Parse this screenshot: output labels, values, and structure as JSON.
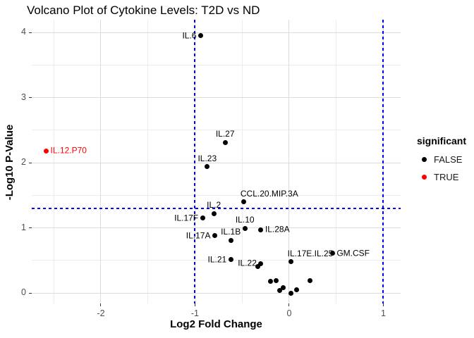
{
  "title": "Volcano Plot of Cytokine Levels: T2D vs ND",
  "legend": {
    "title": "significant",
    "items": [
      {
        "label": "FALSE",
        "color": "#000000"
      },
      {
        "label": "TRUE",
        "color": "#FF0000"
      }
    ]
  },
  "colors": {
    "threshold_line": "#0000EE",
    "significant_true": "#FF0000",
    "significant_false": "#000000",
    "grid_major": "#DCDCDC",
    "grid_minor": "#ECECEC",
    "tick_label": "#4D4D4D"
  },
  "chart_data": {
    "type": "scatter",
    "title": "Volcano Plot of Cytokine Levels: T2D vs ND",
    "xlabel": "Log2 Fold Change",
    "ylabel": "-Log10 P-Value",
    "xlim": [
      -2.734,
      1.184
    ],
    "ylim": [
      -0.162,
      4.195
    ],
    "x_ticks": [
      -2,
      -1,
      0,
      1
    ],
    "x_tick_labels": [
      "-2",
      "-1",
      "0",
      "1"
    ],
    "y_ticks": [
      0,
      1,
      2,
      3,
      4
    ],
    "y_tick_labels": [
      "0",
      "1",
      "2",
      "3",
      "4"
    ],
    "x_minor_ticks": [
      -2.5,
      -1.5,
      -0.5,
      0.5
    ],
    "y_minor_ticks": [
      0.5,
      1.5,
      2.5,
      3.5
    ],
    "grid": true,
    "legend_position": "right",
    "legend_title": "significant",
    "threshold_hline_y": 1.301,
    "threshold_vlines_x": [
      -1,
      1
    ],
    "points": [
      {
        "label": "IL.6",
        "x": -0.94,
        "y": 3.95,
        "significant": false,
        "label_pos": "left"
      },
      {
        "label": "IL.27",
        "x": -0.68,
        "y": 2.31,
        "significant": false,
        "label_pos": "above"
      },
      {
        "label": "IL.12.P70",
        "x": -2.58,
        "y": 2.18,
        "significant": true,
        "label_pos": "right"
      },
      {
        "label": "IL.23",
        "x": -0.87,
        "y": 1.94,
        "significant": false,
        "label_pos": "above"
      },
      {
        "label": "CCL.20.MIP.3A",
        "x": -0.48,
        "y": 1.4,
        "significant": false,
        "label_pos": "above-right"
      },
      {
        "label": "IL.2",
        "x": -0.8,
        "y": 1.22,
        "significant": false,
        "label_pos": "above"
      },
      {
        "label": "IL.17F",
        "x": -0.92,
        "y": 1.15,
        "significant": false,
        "label_pos": "left"
      },
      {
        "label": "IL.10",
        "x": -0.47,
        "y": 0.99,
        "significant": false,
        "label_pos": "above"
      },
      {
        "label": "IL.28A",
        "x": -0.3,
        "y": 0.97,
        "significant": false,
        "label_pos": "right"
      },
      {
        "label": "IL.17A",
        "x": -0.79,
        "y": 0.88,
        "significant": false,
        "label_pos": "left"
      },
      {
        "label": "IL.1B",
        "x": -0.62,
        "y": 0.81,
        "significant": false,
        "label_pos": "above"
      },
      {
        "label": "IL.21",
        "x": -0.62,
        "y": 0.51,
        "significant": false,
        "label_pos": "left"
      },
      {
        "label": "IL.22",
        "x": -0.3,
        "y": 0.45,
        "significant": false,
        "label_pos": "left"
      },
      {
        "label": "",
        "x": -0.33,
        "y": 0.41,
        "significant": false
      },
      {
        "label": "IL.17E.IL.25",
        "x": 0.02,
        "y": 0.48,
        "significant": false,
        "label_pos": "above-right"
      },
      {
        "label": "GM.CSF",
        "x": 0.46,
        "y": 0.61,
        "significant": false,
        "label_pos": "right"
      },
      {
        "label": "",
        "x": -0.2,
        "y": 0.18,
        "significant": false
      },
      {
        "label": "",
        "x": -0.14,
        "y": 0.19,
        "significant": false
      },
      {
        "label": "",
        "x": -0.1,
        "y": 0.04,
        "significant": false
      },
      {
        "label": "",
        "x": -0.06,
        "y": 0.08,
        "significant": false
      },
      {
        "label": "",
        "x": 0.02,
        "y": 0.0,
        "significant": false
      },
      {
        "label": "",
        "x": 0.08,
        "y": 0.05,
        "significant": false
      },
      {
        "label": "",
        "x": 0.22,
        "y": 0.19,
        "significant": false
      }
    ]
  }
}
